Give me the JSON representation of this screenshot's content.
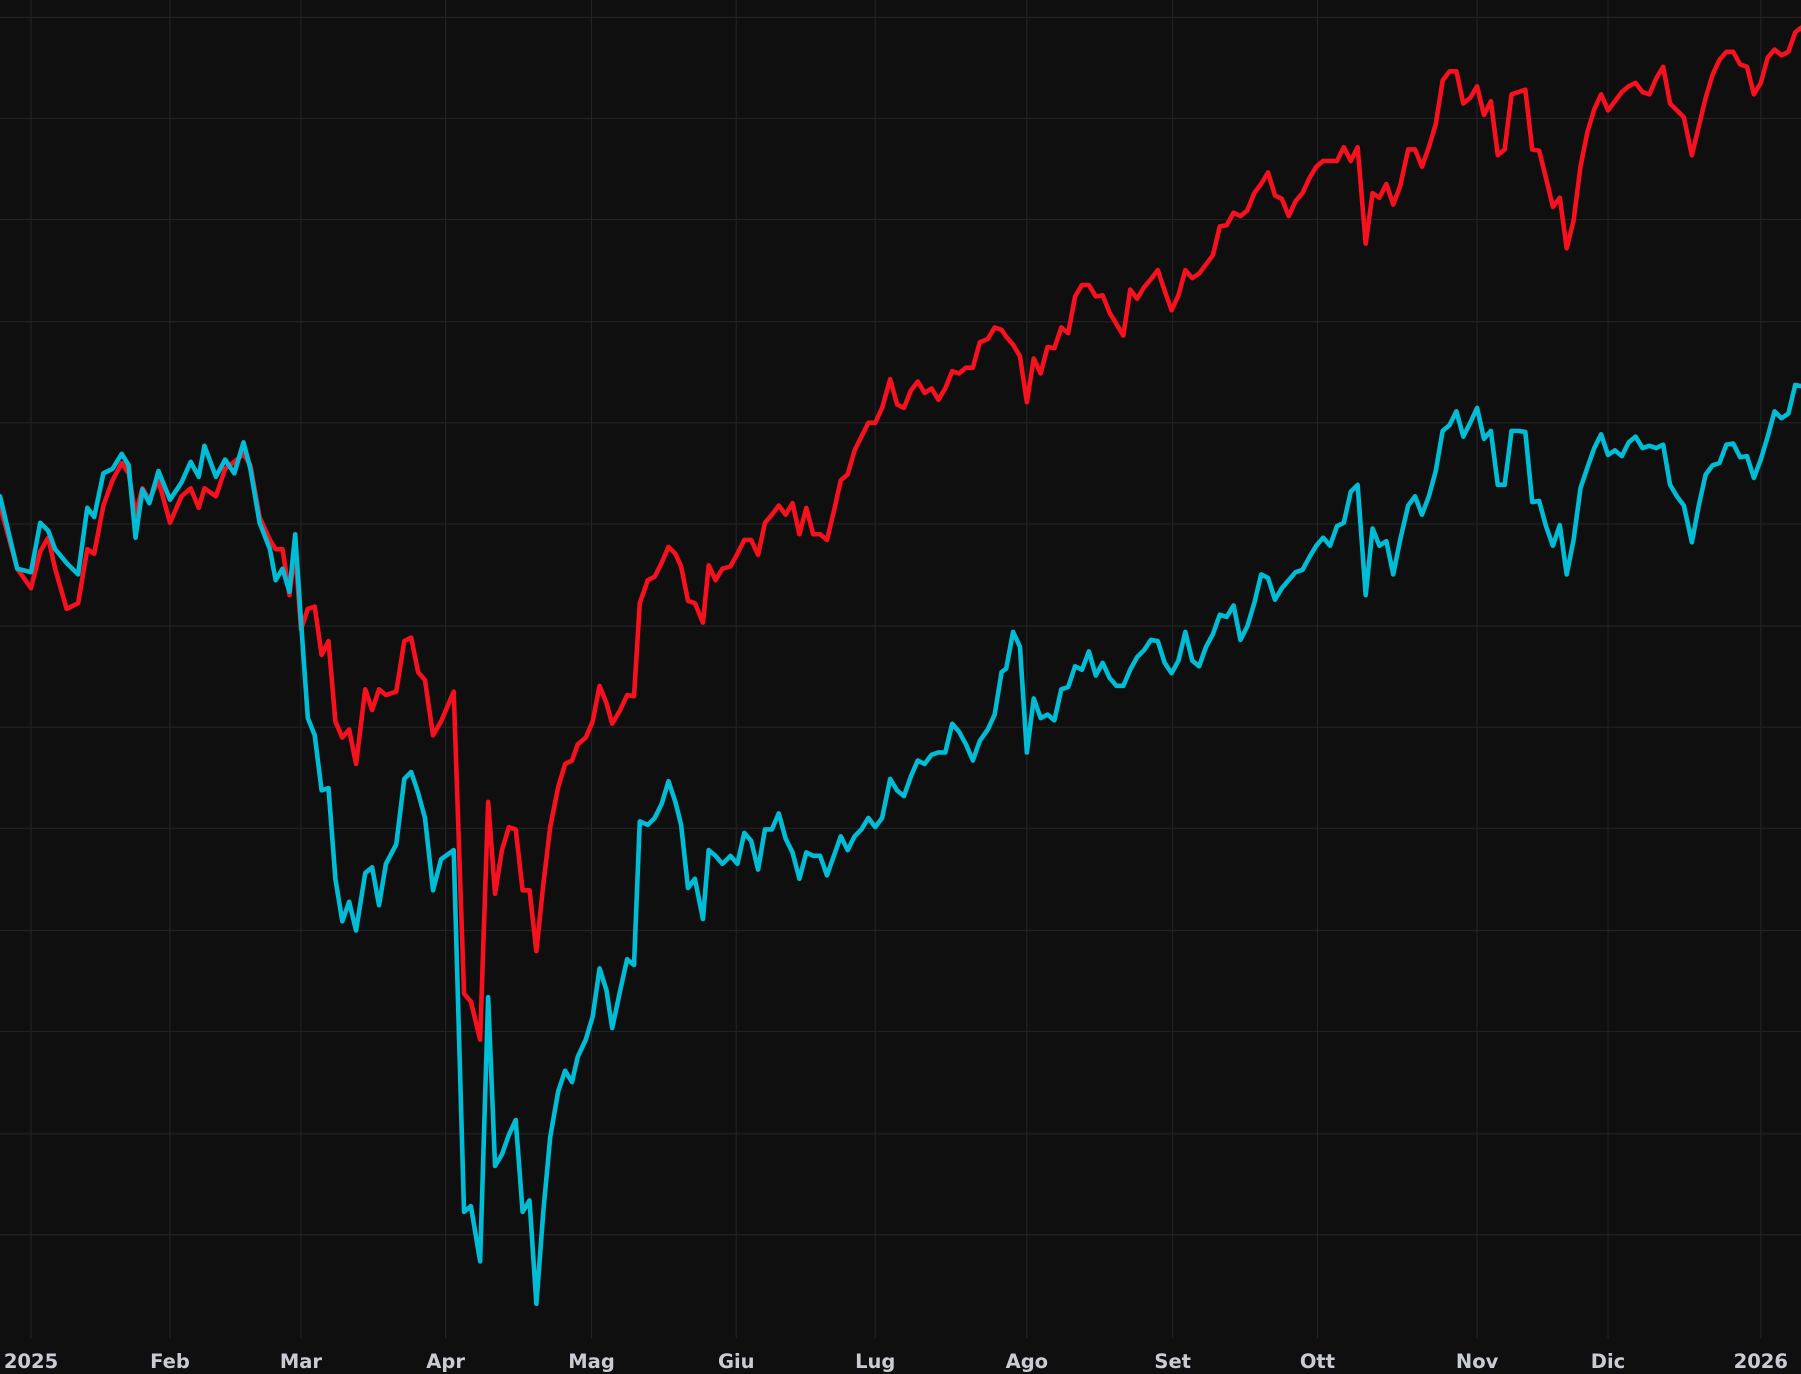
{
  "chart_data": {
    "type": "line",
    "x": [
      -2.7,
      -1.2,
      0,
      0.8,
      1.5,
      2.1,
      3.1,
      4.1,
      4.9,
      5.5,
      6.3,
      7.1,
      7.9,
      8.5,
      9.1,
      9.7,
      10.3,
      11.1,
      12.1,
      13.1,
      13.9,
      14.6,
      15.1,
      16.1,
      16.9,
      17.7,
      18.5,
      19.1,
      19.9,
      20.8,
      21.3,
      21.9,
      22.5,
      23,
      23.5,
      24.1,
      24.7,
      25.3,
      25.9,
      26.5,
      27.1,
      27.7,
      28.3,
      29.1,
      29.7,
      30.3,
      30.9,
      31.8,
      32.5,
      33.1,
      33.7,
      34.3,
      35,
      35.7,
      36.8,
      37.7,
      38.3,
      39.1,
      39.8,
      40.4,
      41,
      41.6,
      42.2,
      42.8,
      43.4,
      44,
      44.6,
      45.2,
      45.9,
      46.5,
      47.1,
      47.6,
      48.3,
      48.9,
      49.5,
      50.1,
      50.6,
      51.3,
      51.9,
      52.5,
      53,
      53.7,
      54.3,
      54.9,
      55.5,
      56.1,
      56.6,
      57.2,
      57.8,
      58.5,
      59,
      59.6,
      60.2,
      60.9,
      61.5,
      62.1,
      62.7,
      63.3,
      63.9,
      64.5,
      65.1,
      65.7,
      66.3,
      66.9,
      67.5,
      68.1,
      68.7,
      69.3,
      69.9,
      70.5,
      71.1,
      71.7,
      72.3,
      72.9,
      73.5,
      74.1,
      74.8,
      75.4,
      76,
      76.6,
      77.2,
      77.8,
      78.4,
      79,
      79.6,
      80.2,
      80.8,
      81.4,
      82,
      82.6,
      83.3,
      83.9,
      84.5,
      84.9,
      85.5,
      86.1,
      86.7,
      87.3,
      87.9,
      88.5,
      89.1,
      89.7,
      90.3,
      90.9,
      91.5,
      92.1,
      92.7,
      93.3,
      93.9,
      94.5,
      95.1,
      95.7,
      96.3,
      96.9,
      97.5,
      98.1,
      98.7,
      99.3,
      99.9,
      100.5,
      101.1,
      101.7,
      102.3,
      102.9,
      103.5,
      104.1,
      104.7,
      105.3,
      105.9,
      106.5,
      107.1,
      107.7,
      108.3,
      108.9,
      109.5,
      110.1,
      110.7,
      111.3,
      111.9,
      112.5,
      113.1,
      113.7,
      114.3,
      114.9,
      115.5,
      116.2,
      116.8,
      117.4,
      118,
      118.6,
      119.2,
      119.9,
      120.5,
      121.1,
      121.7,
      122.3,
      122.9,
      123.5,
      124.1,
      124.7,
      125.3,
      125.9,
      126.5,
      127.1,
      127.7,
      128.3,
      128.9,
      129.5,
      130.1,
      130.7,
      131.3,
      131.9,
      132.5,
      133.1,
      133.7,
      134.3,
      134.9,
      135.5,
      136.1,
      136.7,
      137.3,
      137.9,
      138.5,
      139.1,
      139.7,
      140.3,
      140.9,
      141.5,
      142.1,
      142.7,
      143.3,
      143.9,
      144.6,
      145.2,
      145.8,
      146.4,
      147,
      147.6,
      148.2,
      148.8,
      149.4,
      150,
      150.6,
      151.2,
      151.8,
      152.4,
      153,
      153.6,
      154.1
    ],
    "series": [
      {
        "color": "#f7101e",
        "values": [
          76,
          70.5,
          68.8,
          72,
          73.2,
          70.5,
          67,
          67.5,
          72.2,
          71.8,
          76,
          78.2,
          79.7,
          78.8,
          75.2,
          77.5,
          76.5,
          78.2,
          74.5,
          76.8,
          77.5,
          75.8,
          77.5,
          76.8,
          79.2,
          79.8,
          80.5,
          79.5,
          75,
          73,
          72.2,
          72.2,
          68.2,
          72.2,
          65.2,
          67,
          67.2,
          63,
          64.2,
          57.2,
          55.8,
          56.5,
          53.5,
          60,
          58.2,
          60,
          59.5,
          59.8,
          64.2,
          64.5,
          61.5,
          60.8,
          56,
          57.2,
          59.8,
          33.5,
          32.8,
          29.5,
          50.2,
          42.2,
          46,
          48,
          47.8,
          42.5,
          42.5,
          37.2,
          43,
          48,
          51.5,
          53.5,
          53.8,
          55.2,
          55.8,
          57.2,
          60.3,
          58.8,
          57,
          58.2,
          59.5,
          59.4,
          67.5,
          69.5,
          69.8,
          71,
          72.4,
          71.8,
          70.7,
          67.7,
          67.5,
          65.8,
          70.8,
          69.5,
          70.5,
          70.7,
          71.8,
          73,
          73,
          71.7,
          74.5,
          75.2,
          76,
          75.2,
          76.2,
          73.5,
          75.8,
          73.5,
          73.5,
          73,
          75.5,
          78.2,
          78.7,
          80.8,
          82,
          83.2,
          83.2,
          84.5,
          87,
          84.8,
          84.5,
          86,
          86.8,
          85.8,
          86.2,
          85.2,
          86.2,
          87.7,
          87.5,
          88,
          88,
          90.2,
          90.5,
          91.5,
          91.3,
          90.7,
          90,
          89,
          85,
          88.8,
          87.5,
          89.8,
          89.7,
          91.5,
          91,
          94.2,
          95.2,
          95.2,
          94.2,
          94.3,
          92.8,
          91.8,
          90.8,
          94.8,
          94,
          95,
          95.7,
          96.5,
          94.7,
          93,
          94.3,
          96.5,
          95.8,
          96.2,
          97,
          97.8,
          100.3,
          100.4,
          101.5,
          101.2,
          101.7,
          103.2,
          104,
          105,
          103,
          102.7,
          101.2,
          102.5,
          103.2,
          104.5,
          105.5,
          106,
          106,
          106,
          107.2,
          106,
          107.2,
          98.8,
          103.2,
          102.8,
          104,
          102.2,
          103.8,
          107,
          107,
          105.5,
          107.2,
          109.2,
          113,
          113.8,
          113.8,
          111,
          111.5,
          112.5,
          110,
          111.2,
          106.5,
          107,
          111.8,
          112,
          112.2,
          107,
          106.9,
          104.5,
          102,
          102.8,
          98.4,
          100.8,
          105.5,
          108.5,
          110.5,
          111.8,
          110.4,
          111.2,
          112,
          112.5,
          112.8,
          112,
          111.8,
          113.2,
          114.2,
          111,
          110.4,
          109.8,
          106.5,
          109,
          111.5,
          113.5,
          114.8,
          115.5,
          115.5,
          114.4,
          114.2,
          111.8,
          112.8,
          115,
          115.7,
          115.2,
          115.5,
          117.2,
          117.6
        ]
      },
      {
        "color": "#00bcd4",
        "values": [
          76.8,
          70.5,
          70.2,
          74.5,
          73.8,
          72.2,
          71,
          70,
          75.8,
          75,
          78.8,
          79.2,
          80.5,
          79.5,
          73.2,
          77.4,
          76.2,
          79,
          76.5,
          78,
          79.8,
          78.5,
          81.2,
          78.5,
          80,
          78.8,
          81.5,
          79.2,
          74.5,
          72.2,
          69.5,
          70.5,
          68.5,
          73.5,
          66,
          57.5,
          56,
          51.2,
          51.4,
          43.5,
          39.8,
          41.5,
          39,
          44,
          44.5,
          41.2,
          44.8,
          46.5,
          52.2,
          52.8,
          51,
          48.8,
          42.5,
          45.2,
          46,
          14.5,
          15,
          10.2,
          33.2,
          18.5,
          19.5,
          21.2,
          22.5,
          14.5,
          15.5,
          6.5,
          14.5,
          21,
          25,
          26.8,
          25.8,
          28,
          29.5,
          31.5,
          35.7,
          33.8,
          30.5,
          33.8,
          36.5,
          36,
          48.5,
          48.2,
          48.8,
          50,
          52,
          50.2,
          48.2,
          42.7,
          43.5,
          40,
          46,
          45.5,
          44.8,
          45.5,
          44.8,
          47.5,
          46.8,
          44.3,
          47.8,
          47.8,
          49.2,
          47,
          45.8,
          43.5,
          45.8,
          45.5,
          45.5,
          43.8,
          45.5,
          47.2,
          46,
          47.2,
          47.8,
          48.8,
          48,
          48.8,
          52.2,
          51.2,
          50.7,
          52.4,
          53.8,
          53.5,
          54.3,
          54.5,
          54.5,
          57,
          56.3,
          55.2,
          53.8,
          55.5,
          56.5,
          57.8,
          61.5,
          61.8,
          65,
          63.7,
          54.5,
          59.2,
          57.5,
          57.8,
          57.3,
          60,
          60.2,
          62,
          61.7,
          63.3,
          61.2,
          62.3,
          61,
          60.3,
          60.3,
          61.7,
          62.8,
          63.4,
          64.3,
          64.2,
          62.3,
          61.4,
          62.5,
          65,
          62.5,
          62,
          63.7,
          64.8,
          66.5,
          66.3,
          67.3,
          64.3,
          65.5,
          67.5,
          70,
          69.7,
          67.8,
          68.8,
          69.5,
          70.2,
          70.4,
          71.5,
          72.5,
          73.2,
          72.5,
          74.2,
          74.5,
          77.2,
          77.8,
          68.2,
          74,
          72.5,
          72.9,
          70,
          73,
          76,
          76.8,
          75.2,
          76.8,
          79,
          82.5,
          83,
          84.2,
          82,
          83.2,
          84.5,
          81.8,
          82.5,
          77.8,
          77.8,
          82.5,
          82.5,
          82.4,
          76.3,
          76.4,
          74.2,
          72.5,
          74.3,
          70,
          73,
          77.5,
          79.3,
          81,
          82.2,
          80.4,
          80.8,
          80.3,
          81.5,
          82,
          81,
          81.2,
          81,
          81.3,
          77.8,
          76.8,
          76,
          72.8,
          76,
          78.7,
          79.5,
          79.7,
          81.3,
          81.4,
          80.2,
          80.3,
          78.4,
          80,
          82,
          84.2,
          83.6,
          84,
          86.5,
          86.4
        ]
      }
    ],
    "xlim": [
      -2.7,
      154.1
    ],
    "xticks": [
      {
        "value": 0,
        "label": "2025"
      },
      {
        "value": 12.1,
        "label": "Feb"
      },
      {
        "value": 23.5,
        "label": "Mar"
      },
      {
        "value": 36.1,
        "label": "Apr"
      },
      {
        "value": 48.8,
        "label": "Mag"
      },
      {
        "value": 61.4,
        "label": "Giu"
      },
      {
        "value": 73.5,
        "label": "Lug"
      },
      {
        "value": 86.7,
        "label": "Ago"
      },
      {
        "value": 99.4,
        "label": "Set"
      },
      {
        "value": 112,
        "label": "Ott"
      },
      {
        "value": 125.9,
        "label": "Nov"
      },
      {
        "value": 137.3,
        "label": "Dic"
      },
      {
        "value": 150.6,
        "label": "2026"
      }
    ],
    "ylim": [
      3.5,
      120
    ],
    "yticks": [
      12.5,
      21.3,
      30.2,
      39,
      47.9,
      56.7,
      65.5,
      74.4,
      83.2,
      92,
      100.9,
      109.7,
      118.5
    ],
    "grid": true
  }
}
